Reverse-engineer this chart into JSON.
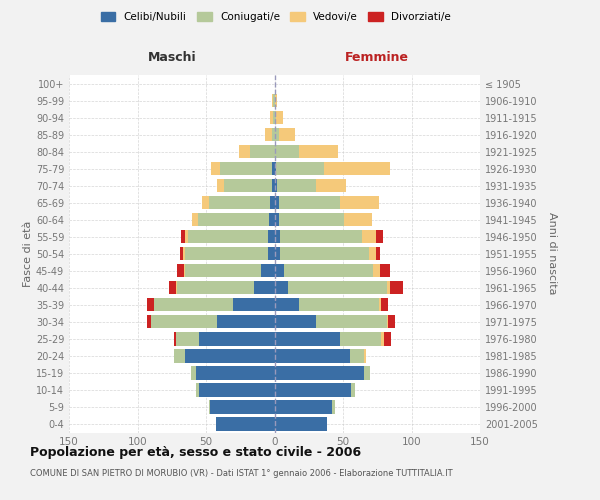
{
  "age_groups": [
    "0-4",
    "5-9",
    "10-14",
    "15-19",
    "20-24",
    "25-29",
    "30-34",
    "35-39",
    "40-44",
    "45-49",
    "50-54",
    "55-59",
    "60-64",
    "65-69",
    "70-74",
    "75-79",
    "80-84",
    "85-89",
    "90-94",
    "95-99",
    "100+"
  ],
  "birth_years": [
    "2001-2005",
    "1996-2000",
    "1991-1995",
    "1986-1990",
    "1981-1985",
    "1976-1980",
    "1971-1975",
    "1966-1970",
    "1961-1965",
    "1956-1960",
    "1951-1955",
    "1946-1950",
    "1941-1945",
    "1936-1940",
    "1931-1935",
    "1926-1930",
    "1921-1925",
    "1916-1920",
    "1911-1915",
    "1906-1910",
    "≤ 1905"
  ],
  "maschi": {
    "celibi": [
      43,
      47,
      55,
      57,
      65,
      55,
      42,
      30,
      15,
      10,
      5,
      5,
      4,
      3,
      2,
      2,
      0,
      0,
      0,
      0,
      0
    ],
    "coniugati": [
      0,
      1,
      2,
      4,
      8,
      17,
      48,
      58,
      56,
      55,
      60,
      58,
      52,
      45,
      35,
      38,
      18,
      2,
      1,
      1,
      0
    ],
    "vedovi": [
      0,
      0,
      0,
      0,
      0,
      0,
      0,
      0,
      1,
      1,
      2,
      2,
      4,
      5,
      5,
      6,
      8,
      5,
      2,
      1,
      0
    ],
    "divorziati": [
      0,
      0,
      0,
      0,
      0,
      1,
      3,
      5,
      5,
      5,
      2,
      3,
      0,
      0,
      0,
      0,
      0,
      0,
      0,
      0,
      0
    ]
  },
  "femmine": {
    "nubili": [
      38,
      42,
      56,
      65,
      55,
      48,
      30,
      18,
      10,
      7,
      4,
      4,
      3,
      3,
      2,
      1,
      0,
      0,
      0,
      0,
      0
    ],
    "coniugate": [
      0,
      2,
      3,
      5,
      10,
      30,
      52,
      58,
      72,
      65,
      65,
      60,
      48,
      45,
      28,
      35,
      18,
      3,
      1,
      0,
      0
    ],
    "vedove": [
      0,
      0,
      0,
      0,
      2,
      2,
      1,
      2,
      2,
      5,
      5,
      10,
      20,
      28,
      22,
      48,
      28,
      12,
      5,
      2,
      0
    ],
    "divorziate": [
      0,
      0,
      0,
      0,
      0,
      5,
      5,
      5,
      10,
      7,
      3,
      5,
      0,
      0,
      0,
      0,
      0,
      0,
      0,
      0,
      0
    ]
  },
  "colors": {
    "celibi": "#3a6ea5",
    "coniugati": "#b5c99a",
    "vedovi": "#f5c97a",
    "divorziati": "#cc2222"
  },
  "xlim": 150,
  "title": "Popolazione per età, sesso e stato civile - 2006",
  "subtitle": "COMUNE DI SAN PIETRO DI MORUBIO (VR) - Dati ISTAT 1° gennaio 2006 - Elaborazione TUTTITALIA.IT",
  "ylabel_left": "Fasce di età",
  "ylabel_right": "Anni di nascita",
  "xlabel_maschi": "Maschi",
  "xlabel_femmine": "Femmine",
  "legend_labels": [
    "Celibi/Nubili",
    "Coniugati/e",
    "Vedovi/e",
    "Divorziati/e"
  ],
  "bg_color": "#f2f2f2",
  "plot_bg": "#ffffff",
  "grid_color": "#cccccc",
  "center_line_color": "#9999bb",
  "tick_color": "#777777",
  "title_color": "#111111",
  "subtitle_color": "#555555",
  "maschi_header_color": "#333333",
  "femmine_header_color": "#bb2222"
}
